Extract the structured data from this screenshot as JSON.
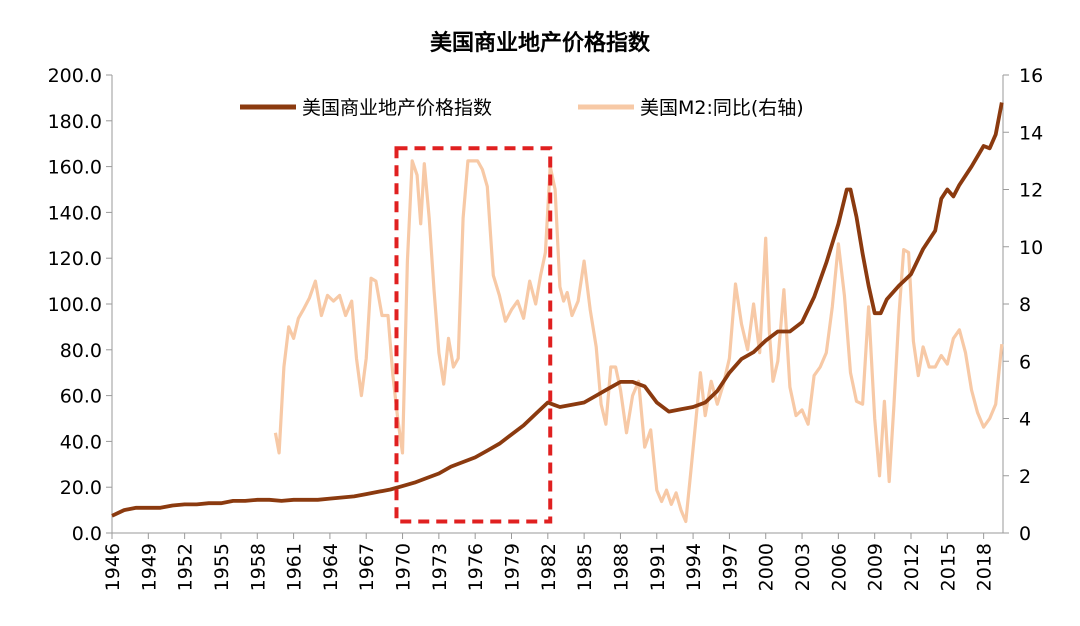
{
  "chart_data": {
    "type": "line",
    "title": "美国商业地产价格指数",
    "xlabel": "",
    "ylabel": "",
    "y2label": "",
    "xlim": [
      1946,
      2019.6
    ],
    "ylim": [
      0,
      200
    ],
    "y2lim": [
      0,
      16
    ],
    "x_ticks": [
      "1946",
      "1949",
      "1952",
      "1955",
      "1958",
      "1961",
      "1964",
      "1967",
      "1970",
      "1973",
      "1976",
      "1979",
      "1982",
      "1985",
      "1988",
      "1991",
      "1994",
      "1997",
      "2000",
      "2003",
      "2006",
      "2009",
      "2012",
      "2015",
      "2018"
    ],
    "y_ticks": [
      "0.0",
      "20.0",
      "40.0",
      "60.0",
      "80.0",
      "100.0",
      "120.0",
      "140.0",
      "160.0",
      "180.0",
      "200.0"
    ],
    "y2_ticks": [
      "0",
      "2",
      "4",
      "6",
      "8",
      "10",
      "12",
      "14",
      "16"
    ],
    "legend_position": "top",
    "grid": false,
    "highlight_box": {
      "x_range": [
        1969.5,
        1982.2
      ],
      "y_range": [
        5,
        168
      ],
      "color": "#e02020",
      "style": "dashed"
    },
    "series": [
      {
        "name": "美国商业地产价格指数",
        "axis": "left",
        "color": "#8b3a0f",
        "x": [
          1946,
          1947,
          1948,
          1949,
          1950,
          1951,
          1952,
          1953,
          1954,
          1955,
          1956,
          1957,
          1958,
          1959,
          1960,
          1961,
          1962,
          1963,
          1964,
          1965,
          1966,
          1967,
          1968,
          1969,
          1970,
          1971,
          1972,
          1973,
          1974,
          1975,
          1976,
          1977,
          1978,
          1979,
          1980,
          1981,
          1982,
          1982.5,
          1983,
          1984,
          1985,
          1986,
          1987,
          1988,
          1989,
          1990,
          1991,
          1992,
          1993,
          1994,
          1995,
          1996,
          1997,
          1998,
          1999,
          2000,
          2001,
          2002,
          2003,
          2004,
          2005,
          2006,
          2006.7,
          2007,
          2007.5,
          2008,
          2008.5,
          2009,
          2009.5,
          2010,
          2011,
          2012,
          2013,
          2014,
          2014.5,
          2015,
          2015.5,
          2016,
          2017,
          2018,
          2018.5,
          2019,
          2019.5
        ],
        "y": [
          7.5,
          10,
          11,
          11,
          11,
          12,
          12.5,
          12.5,
          13,
          13,
          14,
          14,
          14.5,
          14.5,
          14,
          14.5,
          14.5,
          14.5,
          15,
          15.5,
          16,
          17,
          18,
          19,
          20.5,
          22,
          24,
          26,
          29,
          31,
          33,
          36,
          39,
          43,
          47,
          52,
          57,
          56,
          55,
          56,
          57,
          60,
          63,
          66,
          66,
          64,
          57,
          53,
          54,
          55,
          57,
          62,
          70,
          76,
          79,
          84,
          88,
          88,
          92,
          103,
          118,
          135,
          150,
          150,
          138,
          122,
          108,
          96,
          96,
          102,
          108,
          113,
          124,
          132,
          146,
          150,
          147,
          152,
          160,
          169,
          168,
          174,
          188
        ]
      },
      {
        "name": "美国M2:同比(右轴)",
        "axis": "right",
        "color": "#f7c9a6",
        "x": [
          1959.5,
          1959.8,
          1960.2,
          1960.6,
          1961,
          1961.4,
          1961.8,
          1962.3,
          1962.8,
          1963.3,
          1963.8,
          1964.3,
          1964.8,
          1965.3,
          1965.8,
          1966.2,
          1966.6,
          1967,
          1967.4,
          1967.8,
          1968.3,
          1968.8,
          1969.2,
          1969.6,
          1970,
          1970.4,
          1970.8,
          1971.2,
          1971.5,
          1971.8,
          1972.2,
          1972.6,
          1973,
          1973.4,
          1973.8,
          1974.2,
          1974.6,
          1975,
          1975.4,
          1975.8,
          1976.2,
          1976.6,
          1977,
          1977.5,
          1978,
          1978.5,
          1979,
          1979.5,
          1980,
          1980.5,
          1981,
          1981.4,
          1981.8,
          1982.2,
          1982.6,
          1983,
          1983.3,
          1983.6,
          1984,
          1984.5,
          1985,
          1985.5,
          1986,
          1986.4,
          1986.8,
          1987.2,
          1987.6,
          1988,
          1988.5,
          1989,
          1989.5,
          1990,
          1990.5,
          1991,
          1991.4,
          1991.8,
          1992.2,
          1992.6,
          1993,
          1993.4,
          1993.8,
          1994.2,
          1994.6,
          1995,
          1995.5,
          1996,
          1996.5,
          1997,
          1997.5,
          1998,
          1998.5,
          1999,
          1999.5,
          2000,
          2000.3,
          2000.6,
          2001,
          2001.5,
          2002,
          2002.5,
          2003,
          2003.5,
          2004,
          2004.5,
          2005,
          2005.5,
          2006,
          2006.5,
          2007,
          2007.5,
          2008,
          2008.5,
          2009,
          2009.4,
          2009.8,
          2010.2,
          2010.6,
          2011,
          2011.4,
          2011.8,
          2012.2,
          2012.6,
          2013,
          2013.5,
          2014,
          2014.5,
          2015,
          2015.5,
          2016,
          2016.5,
          2017,
          2017.5,
          2018,
          2018.5,
          2019,
          2019.5
        ],
        "y": [
          3.5,
          2.8,
          5.8,
          7.2,
          6.8,
          7.5,
          7.8,
          8.2,
          8.8,
          7.6,
          8.3,
          8.1,
          8.3,
          7.6,
          8.1,
          6.1,
          4.8,
          6.1,
          8.9,
          8.8,
          7.6,
          7.6,
          5.5,
          4,
          2.8,
          9.5,
          13,
          12.5,
          10.8,
          12.9,
          11,
          8.5,
          6.3,
          5.2,
          6.8,
          5.8,
          6.1,
          11,
          13,
          13,
          13,
          12.7,
          12.1,
          9,
          8.3,
          7.4,
          7.8,
          8.1,
          7.5,
          8.8,
          8,
          9,
          9.8,
          12.8,
          12,
          8.6,
          8.1,
          8.4,
          7.6,
          8.1,
          9.5,
          7.8,
          6.5,
          4.5,
          3.8,
          5.8,
          5.8,
          5,
          3.5,
          4.8,
          5.3,
          3,
          3.6,
          1.5,
          1.1,
          1.5,
          1,
          1.4,
          0.8,
          0.4,
          2.1,
          3.8,
          5.6,
          4.1,
          5.3,
          4.5,
          5.2,
          6.1,
          8.7,
          7.3,
          6.4,
          8,
          6.3,
          10.3,
          7,
          5.3,
          6,
          8.5,
          5.1,
          4.1,
          4.3,
          3.8,
          5.5,
          5.8,
          6.3,
          7.9,
          10.1,
          8.3,
          5.6,
          4.6,
          4.5,
          7.9,
          4,
          2,
          4.6,
          1.8,
          4.5,
          7.6,
          9.9,
          9.8,
          6.7,
          5.5,
          6.5,
          5.8,
          5.8,
          6.2,
          5.9,
          6.8,
          7.1,
          6.3,
          5,
          4.2,
          3.7,
          4,
          4.5,
          6.6
        ]
      }
    ]
  }
}
